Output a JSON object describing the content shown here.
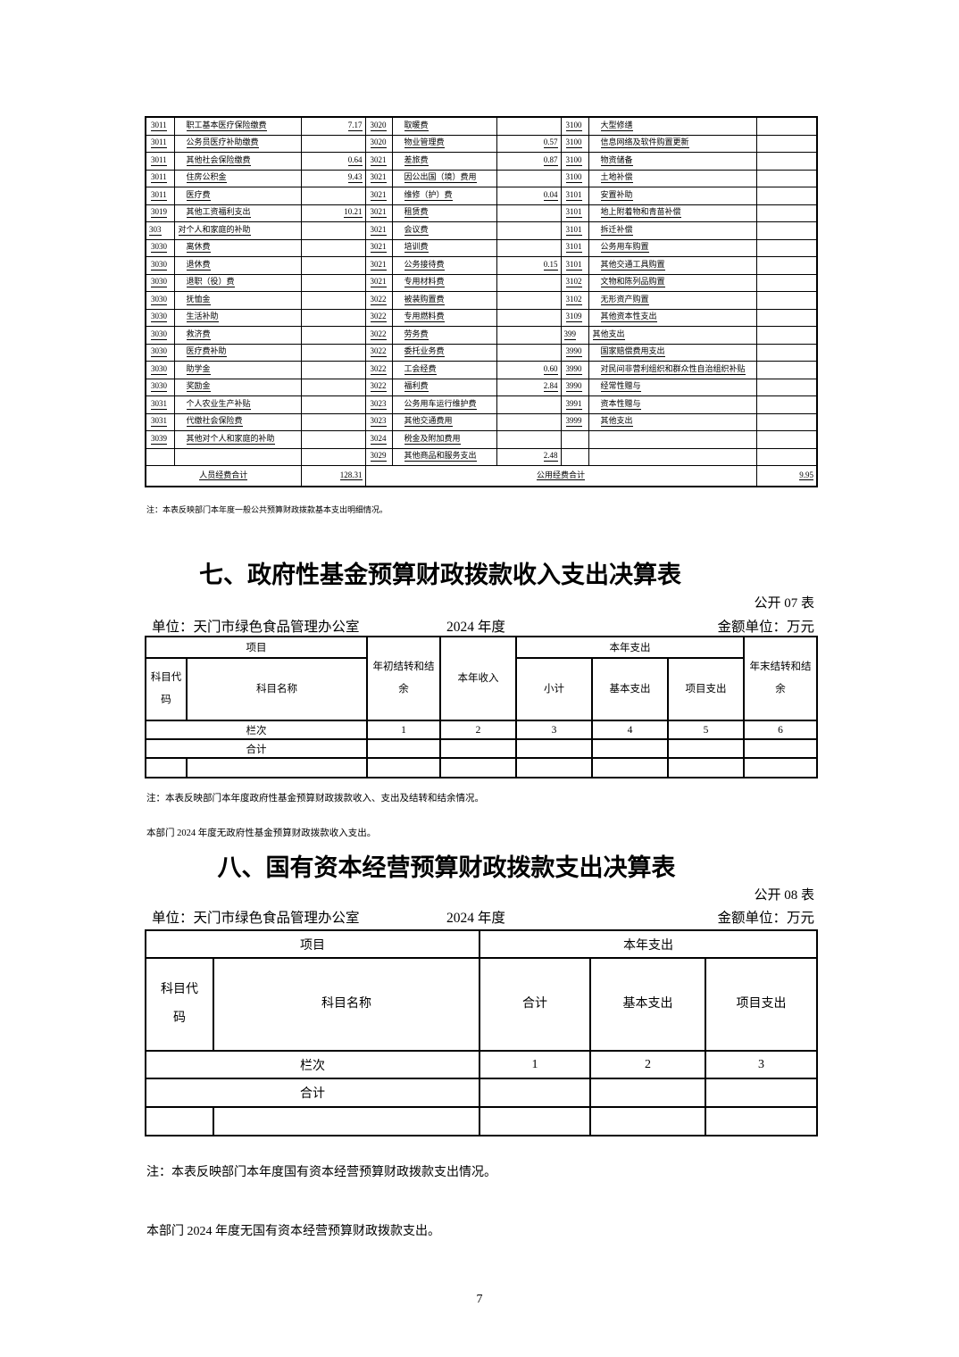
{
  "detail_table": {
    "rows": [
      [
        "3011",
        "职工基本医疗保险缴费",
        "7.17",
        "3020",
        "取暖费",
        "",
        "3100",
        "大型修缮",
        ""
      ],
      [
        "3011",
        "公务员医疗补助缴费",
        "",
        "3020",
        "物业管理费",
        "0.57",
        "3100",
        "信息网络及软件购置更新",
        ""
      ],
      [
        "3011",
        "其他社会保险缴费",
        "0.64",
        "3021",
        "差旅费",
        "0.87",
        "3100",
        "物资储备",
        ""
      ],
      [
        "3011",
        "住房公积金",
        "9.43",
        "3021",
        "因公出国（境）费用",
        "",
        "3100",
        "土地补偿",
        ""
      ],
      [
        "3011",
        "医疗费",
        "",
        "3021",
        "维修（护）费",
        "0.04",
        "3101",
        "安置补助",
        ""
      ],
      [
        "3019",
        "其他工资福利支出",
        "10.21",
        "3021",
        "租赁费",
        "",
        "3101",
        "地上附着物和青苗补偿",
        ""
      ],
      [
        "303",
        "对个人和家庭的补助",
        "",
        "3021",
        "会议费",
        "",
        "3101",
        "拆迁补偿",
        ""
      ],
      [
        "3030",
        "离休费",
        "",
        "3021",
        "培训费",
        "",
        "3101",
        "公务用车购置",
        ""
      ],
      [
        "3030",
        "退休费",
        "",
        "3021",
        "公务接待费",
        "0.15",
        "3101",
        "其他交通工具购置",
        ""
      ],
      [
        "3030",
        "退职（役）费",
        "",
        "3021",
        "专用材料费",
        "",
        "3102",
        "文物和陈列品购置",
        ""
      ],
      [
        "3030",
        "抚恤金",
        "",
        "3022",
        "被装购置费",
        "",
        "3102",
        "无形资产购置",
        ""
      ],
      [
        "3030",
        "生活补助",
        "",
        "3022",
        "专用燃料费",
        "",
        "3109",
        "其他资本性支出",
        ""
      ],
      [
        "3030",
        "救济费",
        "",
        "3022",
        "劳务费",
        "",
        "399",
        "其他支出",
        ""
      ],
      [
        "3030",
        "医疗费补助",
        "",
        "3022",
        "委托业务费",
        "",
        "3990",
        "国家赔偿费用支出",
        ""
      ],
      [
        "3030",
        "助学金",
        "",
        "3022",
        "工会经费",
        "0.60",
        "3990",
        "对民间非营利组织和群众性自治组织补贴",
        ""
      ],
      [
        "3030",
        "奖励金",
        "",
        "3022",
        "福利费",
        "2.84",
        "3990",
        "经常性赠与",
        ""
      ],
      [
        "3031",
        "个人农业生产补贴",
        "",
        "3023",
        "公务用车运行维护费",
        "",
        "3991",
        "资本性赠与",
        ""
      ],
      [
        "3031",
        "代缴社会保险费",
        "",
        "3023",
        "其他交通费用",
        "",
        "3999",
        "其他支出",
        ""
      ],
      [
        "3039",
        "其他对个人和家庭的补助",
        "",
        "3024",
        "税金及附加费用",
        "",
        "",
        "",
        ""
      ],
      [
        "",
        "",
        "",
        "3029",
        "其他商品和服务支出",
        "2.48",
        "",
        "",
        ""
      ]
    ],
    "summary": {
      "left_label": "人员经费合计",
      "left_value": "128.31",
      "right_label": "公用经费合计",
      "right_value": "9.95"
    },
    "note": "注：本表反映部门本年度一般公共预算财政拨款基本支出明细情况。"
  },
  "section7": {
    "title": "七、政府性基金预算财政拨款收入支出决算表",
    "tag": "公开 07 表",
    "unit": "单位：天门市绿色食品管理办公室",
    "year": "2024 年度",
    "money_unit": "金额单位：万元",
    "table": {
      "project_header": "项目",
      "code_header": "科目代码",
      "name_header": "科目名称",
      "begin_balance": "年初结转和结余",
      "year_income": "本年收入",
      "year_expense": "本年支出",
      "subtotal": "小计",
      "basic_expense": "基本支出",
      "project_expense": "项目支出",
      "end_balance": "年末结转和结余",
      "lanci_label": "栏次",
      "col_nums": [
        "1",
        "2",
        "3",
        "4",
        "5",
        "6"
      ],
      "total_label": "合计"
    },
    "note": "注：本表反映部门本年度政府性基金预算财政拨款收入、支出及结转和结余情况。",
    "statement": "本部门 2024 年度无政府性基金预算财政拨款收入支出。"
  },
  "section8": {
    "title": "八、国有资本经营预算财政拨款支出决算表",
    "tag": "公开 08 表",
    "unit": "单位：天门市绿色食品管理办公室",
    "year": "2024 年度",
    "money_unit": "金额单位：万元",
    "table": {
      "project_header": "项目",
      "year_expense": "本年支出",
      "code_header": "科目代码",
      "name_header": "科目名称",
      "total_col": "合计",
      "basic_expense": "基本支出",
      "project_expense": "项目支出",
      "lanci_label": "栏次",
      "col_nums": [
        "1",
        "2",
        "3"
      ],
      "total_label": "合计"
    },
    "note": "注：本表反映部门本年度国有资本经营预算财政拨款支出情况。",
    "statement": "本部门 2024 年度无国有资本经营预算财政拨款支出。"
  },
  "page": {
    "number": "7"
  }
}
